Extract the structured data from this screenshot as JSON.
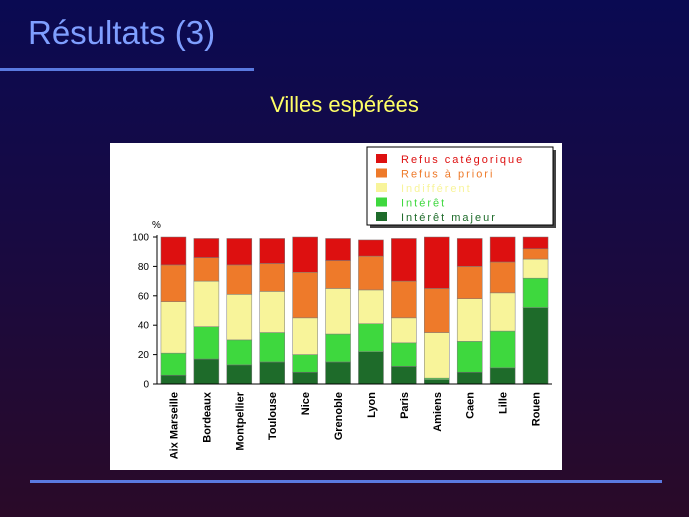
{
  "slide": {
    "title": "Résultats (3)"
  },
  "chart_data": {
    "type": "bar",
    "stacked": true,
    "title": "Villes espérées",
    "ylabel": "%",
    "xlabel": "",
    "ylim": [
      0,
      100
    ],
    "yticks": [
      0,
      20,
      40,
      60,
      80,
      100
    ],
    "grid": false,
    "legend_position": "top-right",
    "categories": [
      "Aix Marseille",
      "Bordeaux",
      "Montpellier",
      "Toulouse",
      "Nice",
      "Grenoble",
      "Lyon",
      "Paris",
      "Amiens",
      "Caen",
      "Lille",
      "Rouen"
    ],
    "series": [
      {
        "name": "Intérêt majeur",
        "color": "#1e6b2a",
        "values": [
          6,
          17,
          13,
          15,
          8,
          15,
          22,
          12,
          3,
          8,
          11,
          52
        ]
      },
      {
        "name": "Intérêt",
        "color": "#3ed83e",
        "values": [
          15,
          22,
          17,
          20,
          12,
          19,
          19,
          16,
          1,
          21,
          25,
          20
        ]
      },
      {
        "name": "Indifférent",
        "color": "#f8f49a",
        "values": [
          35,
          31,
          31,
          28,
          25,
          31,
          23,
          17,
          31,
          29,
          26,
          13
        ]
      },
      {
        "name": "Refus à priori",
        "color": "#ee7a2a",
        "values": [
          25,
          16,
          20,
          19,
          31,
          19,
          23,
          25,
          30,
          22,
          21,
          7
        ]
      },
      {
        "name": "Refus catégorique",
        "color": "#dd1010",
        "values": [
          19,
          13,
          18,
          17,
          24,
          15,
          11,
          29,
          35,
          19,
          17,
          8
        ]
      }
    ]
  }
}
